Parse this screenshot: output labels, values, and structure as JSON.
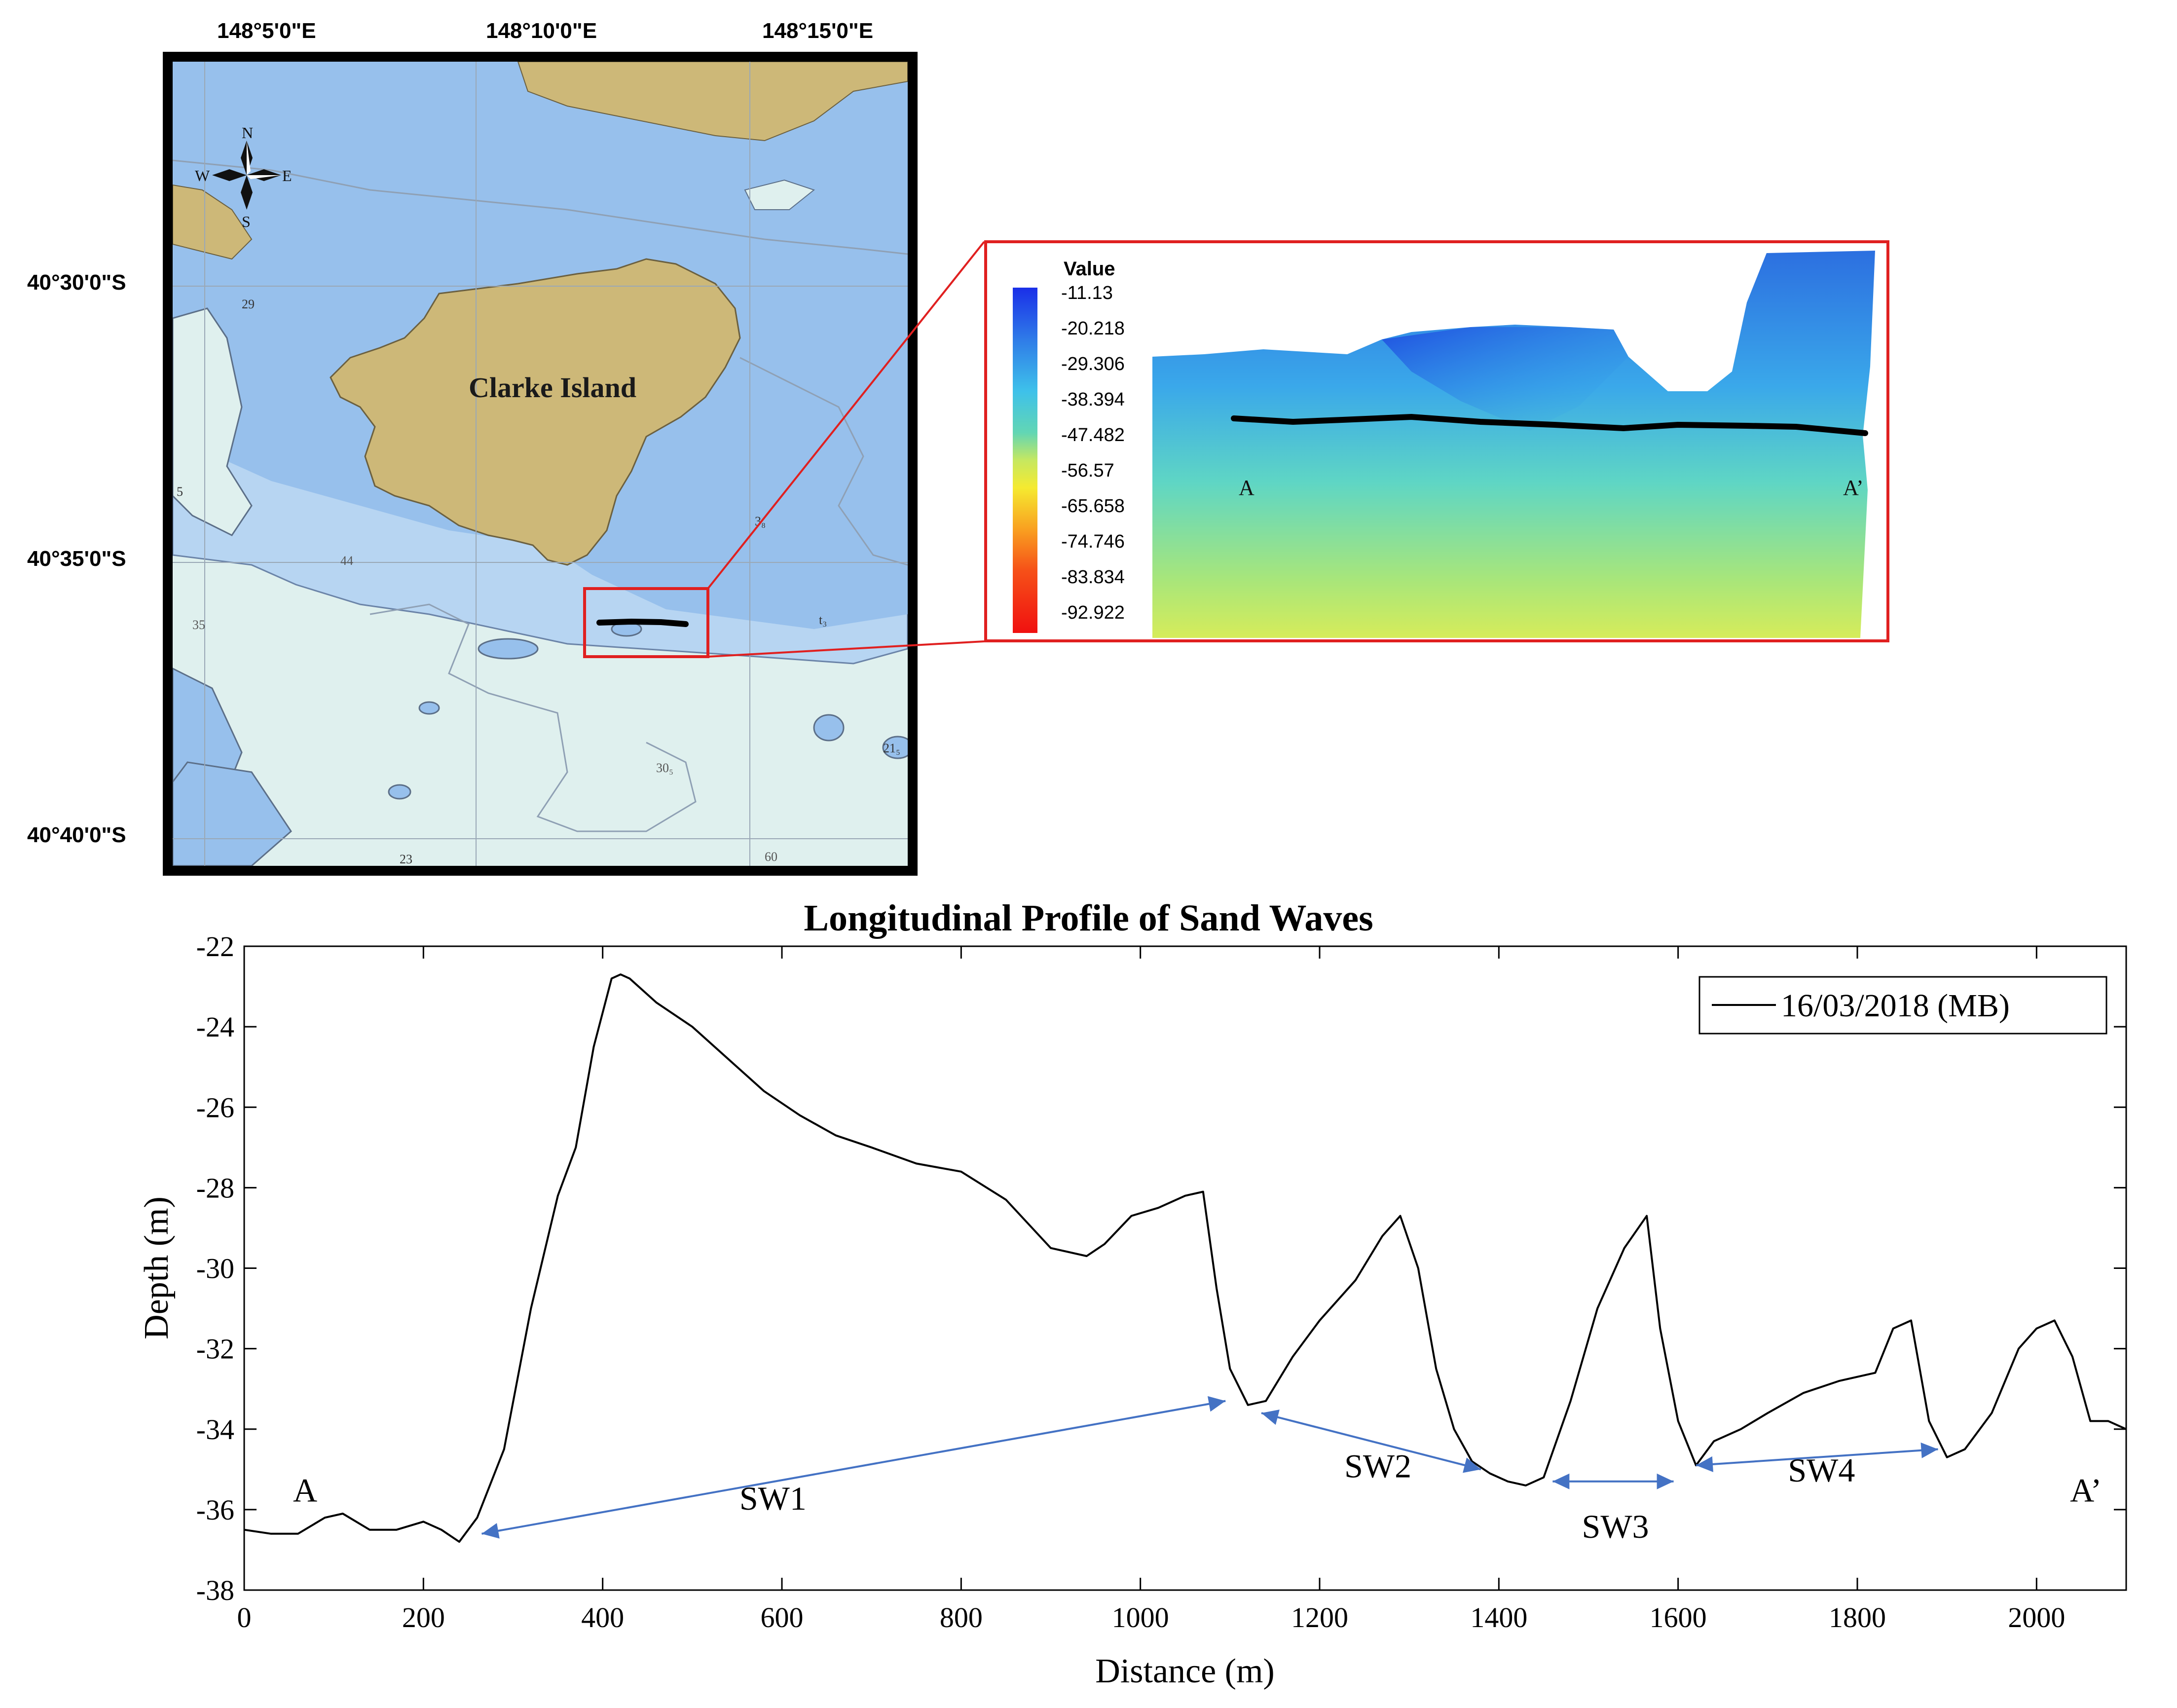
{
  "map": {
    "lon_labels": [
      "148°5'0\"E",
      "148°10'0\"E",
      "148°15'0\"E"
    ],
    "lat_labels": [
      "40°30'0\"S",
      "40°35'0\"S",
      "40°40'0\"S"
    ],
    "island_label": "Clarke Island",
    "compass": {
      "n": "N",
      "s": "S",
      "e": "E",
      "w": "W"
    },
    "soundings": [
      "29",
      "44",
      "35",
      "30₅",
      "60",
      "21₅",
      "23",
      "5",
      "3₈",
      "t₃"
    ]
  },
  "inset": {
    "legend_title": "Value",
    "legend_values": [
      "-11.13",
      "-20.218",
      "-29.306",
      "-38.394",
      "-47.482",
      "-56.57",
      "-65.658",
      "-74.746",
      "-83.834",
      "-92.922"
    ],
    "label_start": "A",
    "label_end": "A’"
  },
  "colors": {
    "land": "#cdb878",
    "shallow_water": "#97c0ec",
    "mid_water": "#b7d5f2",
    "deep_water": "#dff0ee",
    "highlight_box": "#e02020",
    "profile_line": "#000000",
    "annotation_arrow": "#4472c4"
  },
  "chart_data": {
    "type": "line",
    "title": "Longitudinal Profile of Sand Waves",
    "xlabel": "Distance (m)",
    "ylabel": "Depth (m)",
    "xlim": [
      0,
      2100
    ],
    "ylim": [
      -38,
      -22
    ],
    "xticks": [
      0,
      200,
      400,
      600,
      800,
      1000,
      1200,
      1400,
      1600,
      1800,
      2000
    ],
    "yticks": [
      -38,
      -36,
      -34,
      -32,
      -30,
      -28,
      -26,
      -24,
      -22
    ],
    "legend_position": "top-right",
    "series": [
      {
        "name": "16/03/2018 (MB)",
        "x": [
          0,
          30,
          60,
          90,
          110,
          140,
          170,
          200,
          220,
          240,
          260,
          290,
          320,
          350,
          370,
          390,
          410,
          420,
          430,
          460,
          500,
          540,
          580,
          620,
          660,
          700,
          750,
          800,
          850,
          900,
          940,
          960,
          990,
          1020,
          1050,
          1070,
          1085,
          1100,
          1120,
          1140,
          1170,
          1200,
          1240,
          1270,
          1290,
          1310,
          1330,
          1350,
          1370,
          1390,
          1410,
          1430,
          1450,
          1480,
          1510,
          1540,
          1565,
          1580,
          1600,
          1620,
          1640,
          1670,
          1700,
          1740,
          1780,
          1820,
          1840,
          1860,
          1880,
          1900,
          1920,
          1950,
          1980,
          2000,
          2020,
          2040,
          2060,
          2080,
          2100
        ],
        "values": [
          -36.5,
          -36.6,
          -36.6,
          -36.2,
          -36.1,
          -36.5,
          -36.5,
          -36.3,
          -36.5,
          -36.8,
          -36.2,
          -34.5,
          -31.0,
          -28.2,
          -27.0,
          -24.5,
          -22.8,
          -22.7,
          -22.8,
          -23.4,
          -24.0,
          -24.8,
          -25.6,
          -26.2,
          -26.7,
          -27.0,
          -27.4,
          -27.6,
          -28.3,
          -29.5,
          -29.7,
          -29.4,
          -28.7,
          -28.5,
          -28.2,
          -28.1,
          -30.5,
          -32.5,
          -33.4,
          -33.3,
          -32.2,
          -31.3,
          -30.3,
          -29.2,
          -28.7,
          -30.0,
          -32.5,
          -34.0,
          -34.8,
          -35.1,
          -35.3,
          -35.4,
          -35.2,
          -33.3,
          -31.0,
          -29.5,
          -28.7,
          -31.5,
          -33.8,
          -34.9,
          -34.3,
          -34.0,
          -33.6,
          -33.1,
          -32.8,
          -32.6,
          -31.5,
          -31.3,
          -33.8,
          -34.7,
          -34.5,
          -33.6,
          -32.0,
          -31.5,
          -31.3,
          -32.2,
          -33.8,
          -33.8,
          -34.0
        ]
      }
    ],
    "annotations": [
      {
        "label": "A",
        "x": 68,
        "y": -35.8
      },
      {
        "label": "A’",
        "x": 2055,
        "y": -35.8
      },
      {
        "label": "SW1",
        "x": 590,
        "y": -36.0,
        "arrow_from": [
          265,
          -36.6
        ],
        "arrow_to": [
          1095,
          -33.3
        ]
      },
      {
        "label": "SW2",
        "x": 1265,
        "y": -35.2,
        "arrow_from": [
          1135,
          -33.6
        ],
        "arrow_to": [
          1380,
          -35.0
        ]
      },
      {
        "label": "SW3",
        "x": 1530,
        "y": -36.7,
        "arrow_from": [
          1460,
          -35.3
        ],
        "arrow_to": [
          1595,
          -35.3
        ]
      },
      {
        "label": "SW4",
        "x": 1760,
        "y": -35.3,
        "arrow_from": [
          1620,
          -34.9
        ],
        "arrow_to": [
          1890,
          -34.5
        ]
      }
    ]
  }
}
